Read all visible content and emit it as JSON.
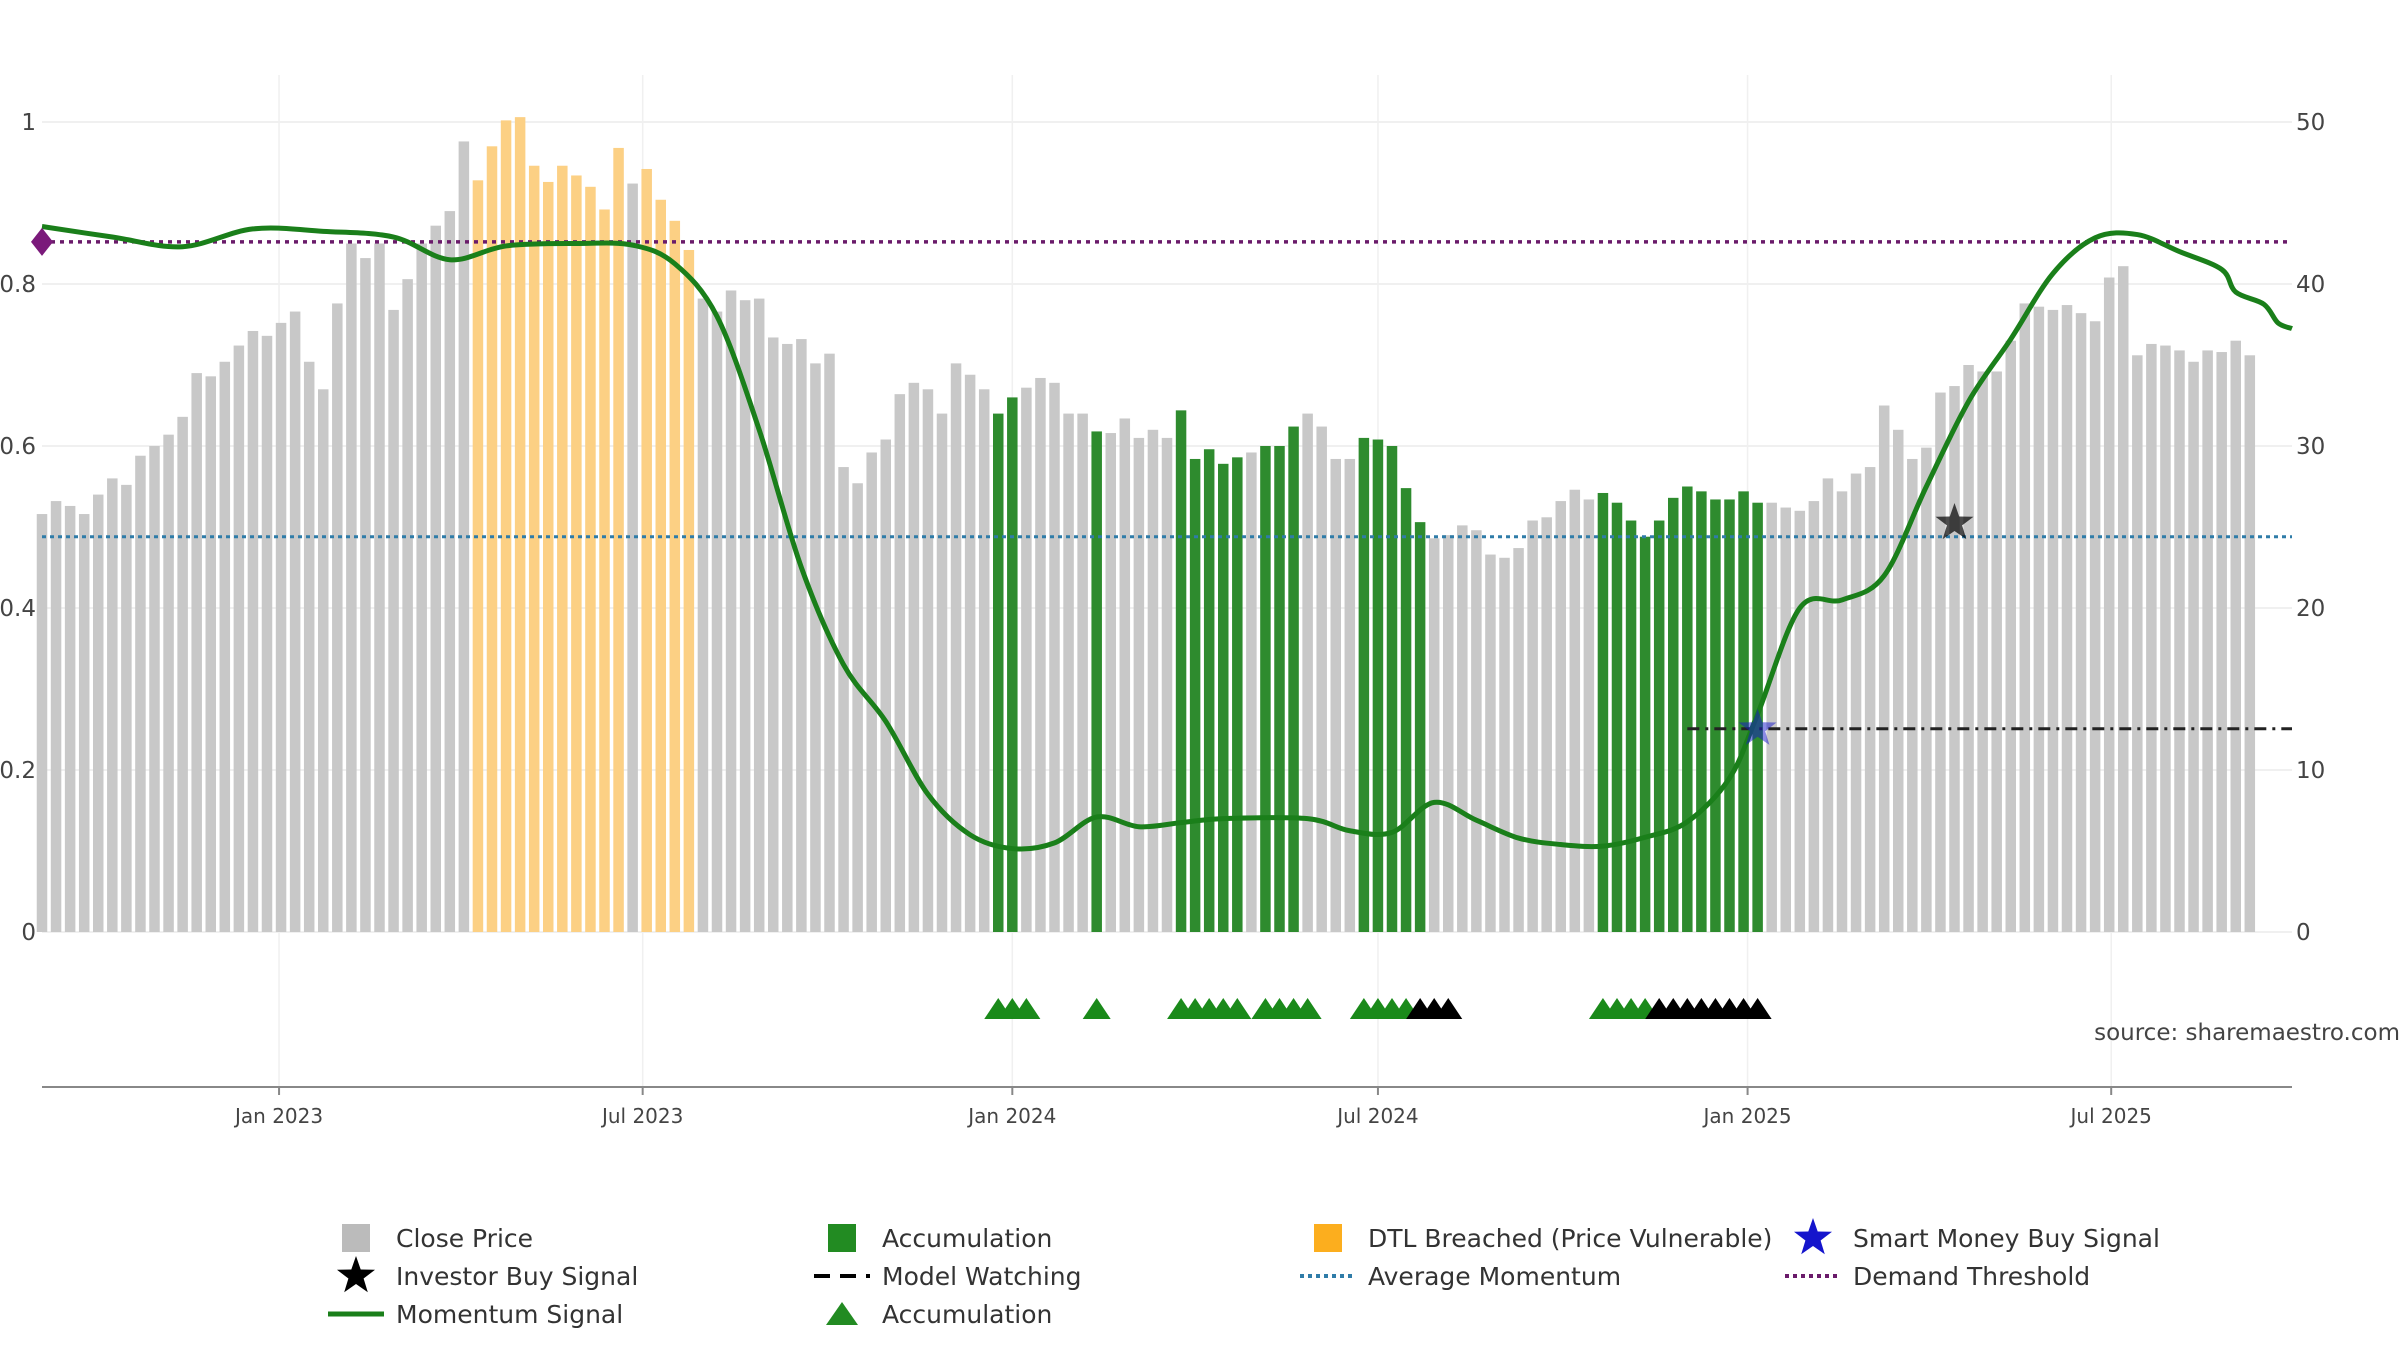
{
  "chart_data": {
    "type": "bar",
    "source_text": "source: sharemaestro.com",
    "left_axis": {
      "range": [
        0,
        1
      ],
      "ticks": [
        {
          "value": 0,
          "label": "0"
        },
        {
          "value": 0.2,
          "label": "0.2"
        },
        {
          "value": 0.4,
          "label": "0.4"
        },
        {
          "value": 0.6,
          "label": "0.6"
        },
        {
          "value": 0.8,
          "label": "0.8"
        },
        {
          "value": 1,
          "label": "1"
        }
      ]
    },
    "right_axis": {
      "range": [
        0,
        50
      ],
      "ticks": [
        {
          "value": 0,
          "label": "0"
        },
        {
          "value": 10,
          "label": "10"
        },
        {
          "value": 20,
          "label": "20"
        },
        {
          "value": 30,
          "label": "30"
        },
        {
          "value": 40,
          "label": "40"
        },
        {
          "value": 50,
          "label": "50"
        }
      ]
    },
    "x_axis": {
      "range": [
        "2022-09-05",
        "2025-09-29"
      ],
      "ticks": [
        {
          "date": "2023-01-01",
          "label": "Jan 2023"
        },
        {
          "date": "2023-07-01",
          "label": "Jul 2023"
        },
        {
          "date": "2024-01-01",
          "label": "Jan 2024"
        },
        {
          "date": "2024-07-01",
          "label": "Jul 2024"
        },
        {
          "date": "2025-01-01",
          "label": "Jan 2025"
        },
        {
          "date": "2025-07-01",
          "label": "Jul 2025"
        }
      ]
    },
    "bar_colors": {
      "C": "#c8c8c8",
      "A": "#2e8b2e",
      "D": "#fcd084"
    },
    "series": [
      {
        "name": "Close Price",
        "type": "bar",
        "axis": "right",
        "start_date": "2022-09-05",
        "interval_days": 7,
        "values": [
          25.8,
          26.6,
          26.3,
          25.8,
          27.0,
          28.0,
          27.6,
          29.4,
          30.0,
          30.7,
          31.8,
          34.5,
          34.3,
          35.2,
          36.2,
          37.1,
          36.8,
          37.6,
          38.3,
          35.2,
          33.5,
          38.8,
          42.5,
          41.6,
          42.5,
          38.4,
          40.3,
          42.5,
          43.6,
          44.5,
          48.8,
          46.4,
          48.5,
          50.1,
          50.3,
          47.3,
          46.3,
          47.3,
          46.7,
          46.0,
          44.6,
          48.4,
          46.2,
          47.1,
          45.2,
          43.9,
          42.1,
          39.1,
          38.3,
          39.6,
          39.0,
          39.1,
          36.7,
          36.3,
          36.6,
          35.1,
          35.7,
          28.7,
          27.7,
          29.6,
          30.4,
          33.2,
          33.9,
          33.5,
          32.0,
          35.1,
          34.4,
          33.5,
          32.0,
          33.0,
          33.6,
          34.2,
          33.9,
          32.0,
          32.0,
          30.9,
          30.8,
          31.7,
          30.5,
          31.0,
          30.5,
          32.2,
          29.2,
          29.8,
          28.9,
          29.3,
          29.6,
          30.0,
          30.0,
          31.2,
          32.0,
          31.2,
          29.2,
          29.2,
          30.5,
          30.4,
          30.0,
          27.4,
          25.3,
          24.3,
          24.5,
          25.1,
          24.8,
          23.3,
          23.1,
          23.7,
          25.4,
          25.6,
          26.6,
          27.3,
          26.7,
          27.1,
          26.5,
          25.4,
          24.4,
          25.4,
          26.8,
          27.5,
          27.2,
          26.7,
          26.7,
          27.2,
          26.5,
          26.5,
          26.2,
          26.0,
          26.6,
          28.0,
          27.2,
          28.3,
          28.7,
          32.5,
          31.0,
          29.2,
          29.9,
          33.3,
          33.7,
          35.0,
          34.6,
          34.6,
          36.5,
          38.8,
          38.6,
          38.4,
          38.7,
          38.2,
          37.7,
          40.4,
          41.1,
          35.6,
          36.3,
          36.2,
          35.9,
          35.2,
          35.9,
          35.8,
          36.5,
          35.6
        ]
      },
      {
        "name": "Momentum Signal",
        "type": "line",
        "axis": "left",
        "color": "#1a7f1a",
        "points": [
          [
            "2022-09-05",
            0.871
          ],
          [
            "2022-10-10",
            0.858
          ],
          [
            "2022-11-14",
            0.846
          ],
          [
            "2022-12-19",
            0.868
          ],
          [
            "2023-01-23",
            0.865
          ],
          [
            "2023-02-27",
            0.858
          ],
          [
            "2023-03-27",
            0.83
          ],
          [
            "2023-04-24",
            0.847
          ],
          [
            "2023-05-29",
            0.85
          ],
          [
            "2023-06-26",
            0.848
          ],
          [
            "2023-07-17",
            0.825
          ],
          [
            "2023-08-07",
            0.76
          ],
          [
            "2023-08-28",
            0.62
          ],
          [
            "2023-09-18",
            0.45
          ],
          [
            "2023-10-09",
            0.33
          ],
          [
            "2023-10-30",
            0.26
          ],
          [
            "2023-11-20",
            0.17
          ],
          [
            "2023-12-11",
            0.12
          ],
          [
            "2024-01-01",
            0.103
          ],
          [
            "2024-01-22",
            0.11
          ],
          [
            "2024-02-12",
            0.142
          ],
          [
            "2024-03-04",
            0.13
          ],
          [
            "2024-03-25",
            0.135
          ],
          [
            "2024-04-15",
            0.14
          ],
          [
            "2024-05-27",
            0.14
          ],
          [
            "2024-06-17",
            0.125
          ],
          [
            "2024-07-08",
            0.123
          ],
          [
            "2024-07-29",
            0.16
          ],
          [
            "2024-08-19",
            0.138
          ],
          [
            "2024-09-09",
            0.116
          ],
          [
            "2024-09-30",
            0.108
          ],
          [
            "2024-10-21",
            0.106
          ],
          [
            "2024-11-11",
            0.117
          ],
          [
            "2024-12-02",
            0.136
          ],
          [
            "2024-12-23",
            0.19
          ],
          [
            "2025-01-06",
            0.269
          ],
          [
            "2025-01-27",
            0.4
          ],
          [
            "2025-02-17",
            0.41
          ],
          [
            "2025-03-10",
            0.44
          ],
          [
            "2025-03-31",
            0.55
          ],
          [
            "2025-04-21",
            0.655
          ],
          [
            "2025-05-12",
            0.732
          ],
          [
            "2025-06-02",
            0.813
          ],
          [
            "2025-06-23",
            0.857
          ],
          [
            "2025-07-14",
            0.861
          ],
          [
            "2025-08-04",
            0.84
          ],
          [
            "2025-08-25",
            0.818
          ],
          [
            "2025-09-01",
            0.79
          ],
          [
            "2025-09-15",
            0.775
          ],
          [
            "2025-09-22",
            0.752
          ],
          [
            "2025-09-29",
            0.745
          ]
        ]
      },
      {
        "name": "Average Momentum",
        "type": "reference_line",
        "axis": "left",
        "value": 0.488,
        "color": "#2f7ca8"
      },
      {
        "name": "Demand Threshold",
        "type": "reference_line",
        "axis": "left",
        "value": 0.852,
        "color": "#6a1b6a"
      },
      {
        "name": "Model Watching",
        "type": "line",
        "axis": "left",
        "value": 0.251,
        "start": "2024-12-02",
        "end": "2025-09-29",
        "color": "#222222"
      },
      {
        "name": "Smart Money Buy Signal",
        "type": "marker",
        "axis": "left",
        "points": [
          [
            "2025-01-06",
            0.251
          ]
        ],
        "color": "#1515cc"
      },
      {
        "name": "Investor Buy Signal",
        "type": "marker",
        "axis": "left",
        "points": [
          [
            "2025-04-14",
            0.505
          ]
        ],
        "color": "#000000"
      },
      {
        "name": "Accumulation",
        "type": "marker",
        "row": "signals",
        "green": [
          "2023-12-25",
          "2024-01-01",
          "2024-01-08",
          "2024-02-12",
          "2024-03-25",
          "2024-04-01",
          "2024-04-08",
          "2024-04-15",
          "2024-04-22",
          "2024-05-06",
          "2024-05-13",
          "2024-05-20",
          "2024-05-27",
          "2024-06-24",
          "2024-07-01",
          "2024-07-08",
          "2024-07-15",
          "2024-10-21",
          "2024-10-28",
          "2024-11-04",
          "2024-11-11"
        ],
        "black": [
          "2024-07-22",
          "2024-07-29",
          "2024-08-05",
          "2024-11-18",
          "2024-11-25",
          "2024-12-02",
          "2024-12-09",
          "2024-12-16",
          "2024-12-23",
          "2024-12-30",
          "2025-01-06"
        ]
      }
    ],
    "legend": [
      {
        "label": "Close Price",
        "symbol": "square",
        "color": "#bbbbbb"
      },
      {
        "label": "Accumulation",
        "symbol": "square",
        "color": "#228b22"
      },
      {
        "label": "DTL Breached (Price Vulnerable)",
        "symbol": "square",
        "color": "#fcae1e"
      },
      {
        "label": "Smart Money Buy Signal",
        "symbol": "star",
        "color": "#1515cc"
      },
      {
        "label": "Investor Buy Signal",
        "symbol": "star",
        "color": "#000000"
      },
      {
        "label": "Model Watching",
        "symbol": "dash",
        "color": "#000000"
      },
      {
        "label": "Average Momentum",
        "symbol": "dot",
        "color": "#2f7ca8"
      },
      {
        "label": "Demand Threshold",
        "symbol": "dot",
        "color": "#6a1b6a"
      },
      {
        "label": "Momentum Signal",
        "symbol": "line",
        "color": "#1a7f1a"
      },
      {
        "label": "Accumulation",
        "symbol": "triangle",
        "color": "#228b22"
      }
    ]
  }
}
